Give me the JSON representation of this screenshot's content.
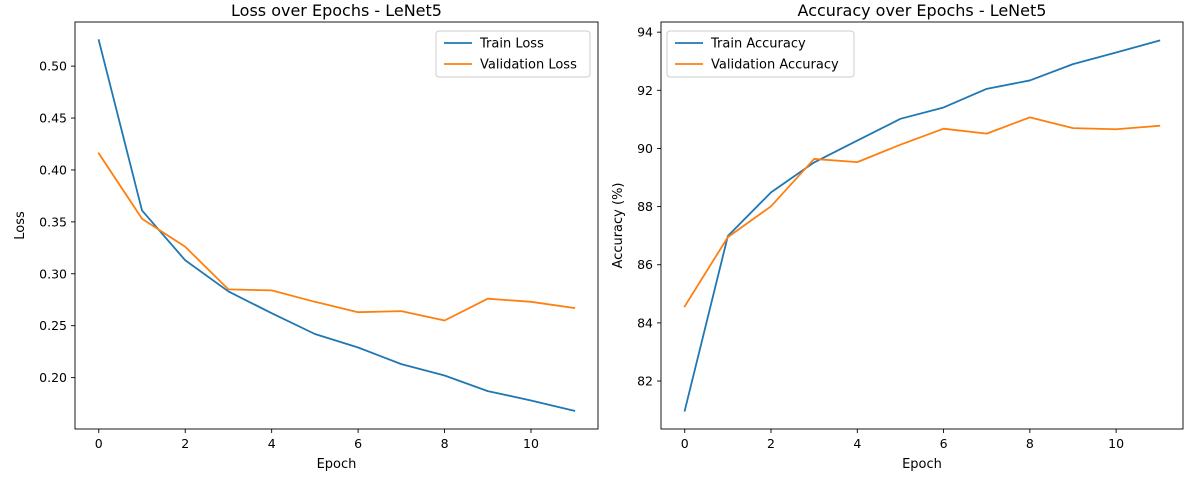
{
  "chart_data": [
    {
      "type": "line",
      "title": "Loss over Epochs - LeNet5",
      "xlabel": "Epoch",
      "ylabel": "Loss",
      "x": [
        0,
        1,
        2,
        3,
        4,
        5,
        6,
        7,
        8,
        9,
        10,
        11
      ],
      "xlim": [
        -0.55,
        11.55
      ],
      "ylim": [
        0.1505,
        0.5425
      ],
      "xticks": [
        0,
        2,
        4,
        6,
        8,
        10
      ],
      "yticks": [
        0.2,
        0.25,
        0.3,
        0.35,
        0.4,
        0.45,
        0.5
      ],
      "ytick_labels": [
        "0.20",
        "0.25",
        "0.30",
        "0.35",
        "0.40",
        "0.45",
        "0.50"
      ],
      "legend": "top-right",
      "grid": false,
      "series": [
        {
          "name": "Train Loss",
          "color": "#1f77b4",
          "values": [
            0.525,
            0.361,
            0.313,
            0.283,
            0.262,
            0.242,
            0.229,
            0.213,
            0.202,
            0.187,
            0.178,
            0.168
          ]
        },
        {
          "name": "Validation Loss",
          "color": "#ff7f0e",
          "values": [
            0.416,
            0.353,
            0.326,
            0.285,
            0.284,
            0.273,
            0.263,
            0.264,
            0.255,
            0.276,
            0.273,
            0.267
          ]
        }
      ]
    },
    {
      "type": "line",
      "title": "Accuracy over Epochs - LeNet5",
      "xlabel": "Epoch",
      "ylabel": "Accuracy (%)",
      "x": [
        0,
        1,
        2,
        3,
        4,
        5,
        6,
        7,
        8,
        9,
        10,
        11
      ],
      "xlim": [
        -0.55,
        11.55
      ],
      "ylim": [
        80.35,
        94.35
      ],
      "xticks": [
        0,
        2,
        4,
        6,
        8,
        10
      ],
      "yticks": [
        82,
        84,
        86,
        88,
        90,
        92,
        94
      ],
      "ytick_labels": [
        "82",
        "84",
        "86",
        "88",
        "90",
        "92",
        "94"
      ],
      "legend": "top-left",
      "grid": false,
      "series": [
        {
          "name": "Train Accuracy",
          "color": "#1f77b4",
          "values": [
            80.98,
            86.99,
            88.49,
            89.52,
            90.27,
            91.02,
            91.41,
            92.05,
            92.34,
            92.9,
            93.3,
            93.71
          ]
        },
        {
          "name": "Validation Accuracy",
          "color": "#ff7f0e",
          "values": [
            84.57,
            86.95,
            88.01,
            89.64,
            89.53,
            90.13,
            90.68,
            90.51,
            91.07,
            90.7,
            90.66,
            90.78
          ]
        }
      ]
    }
  ]
}
